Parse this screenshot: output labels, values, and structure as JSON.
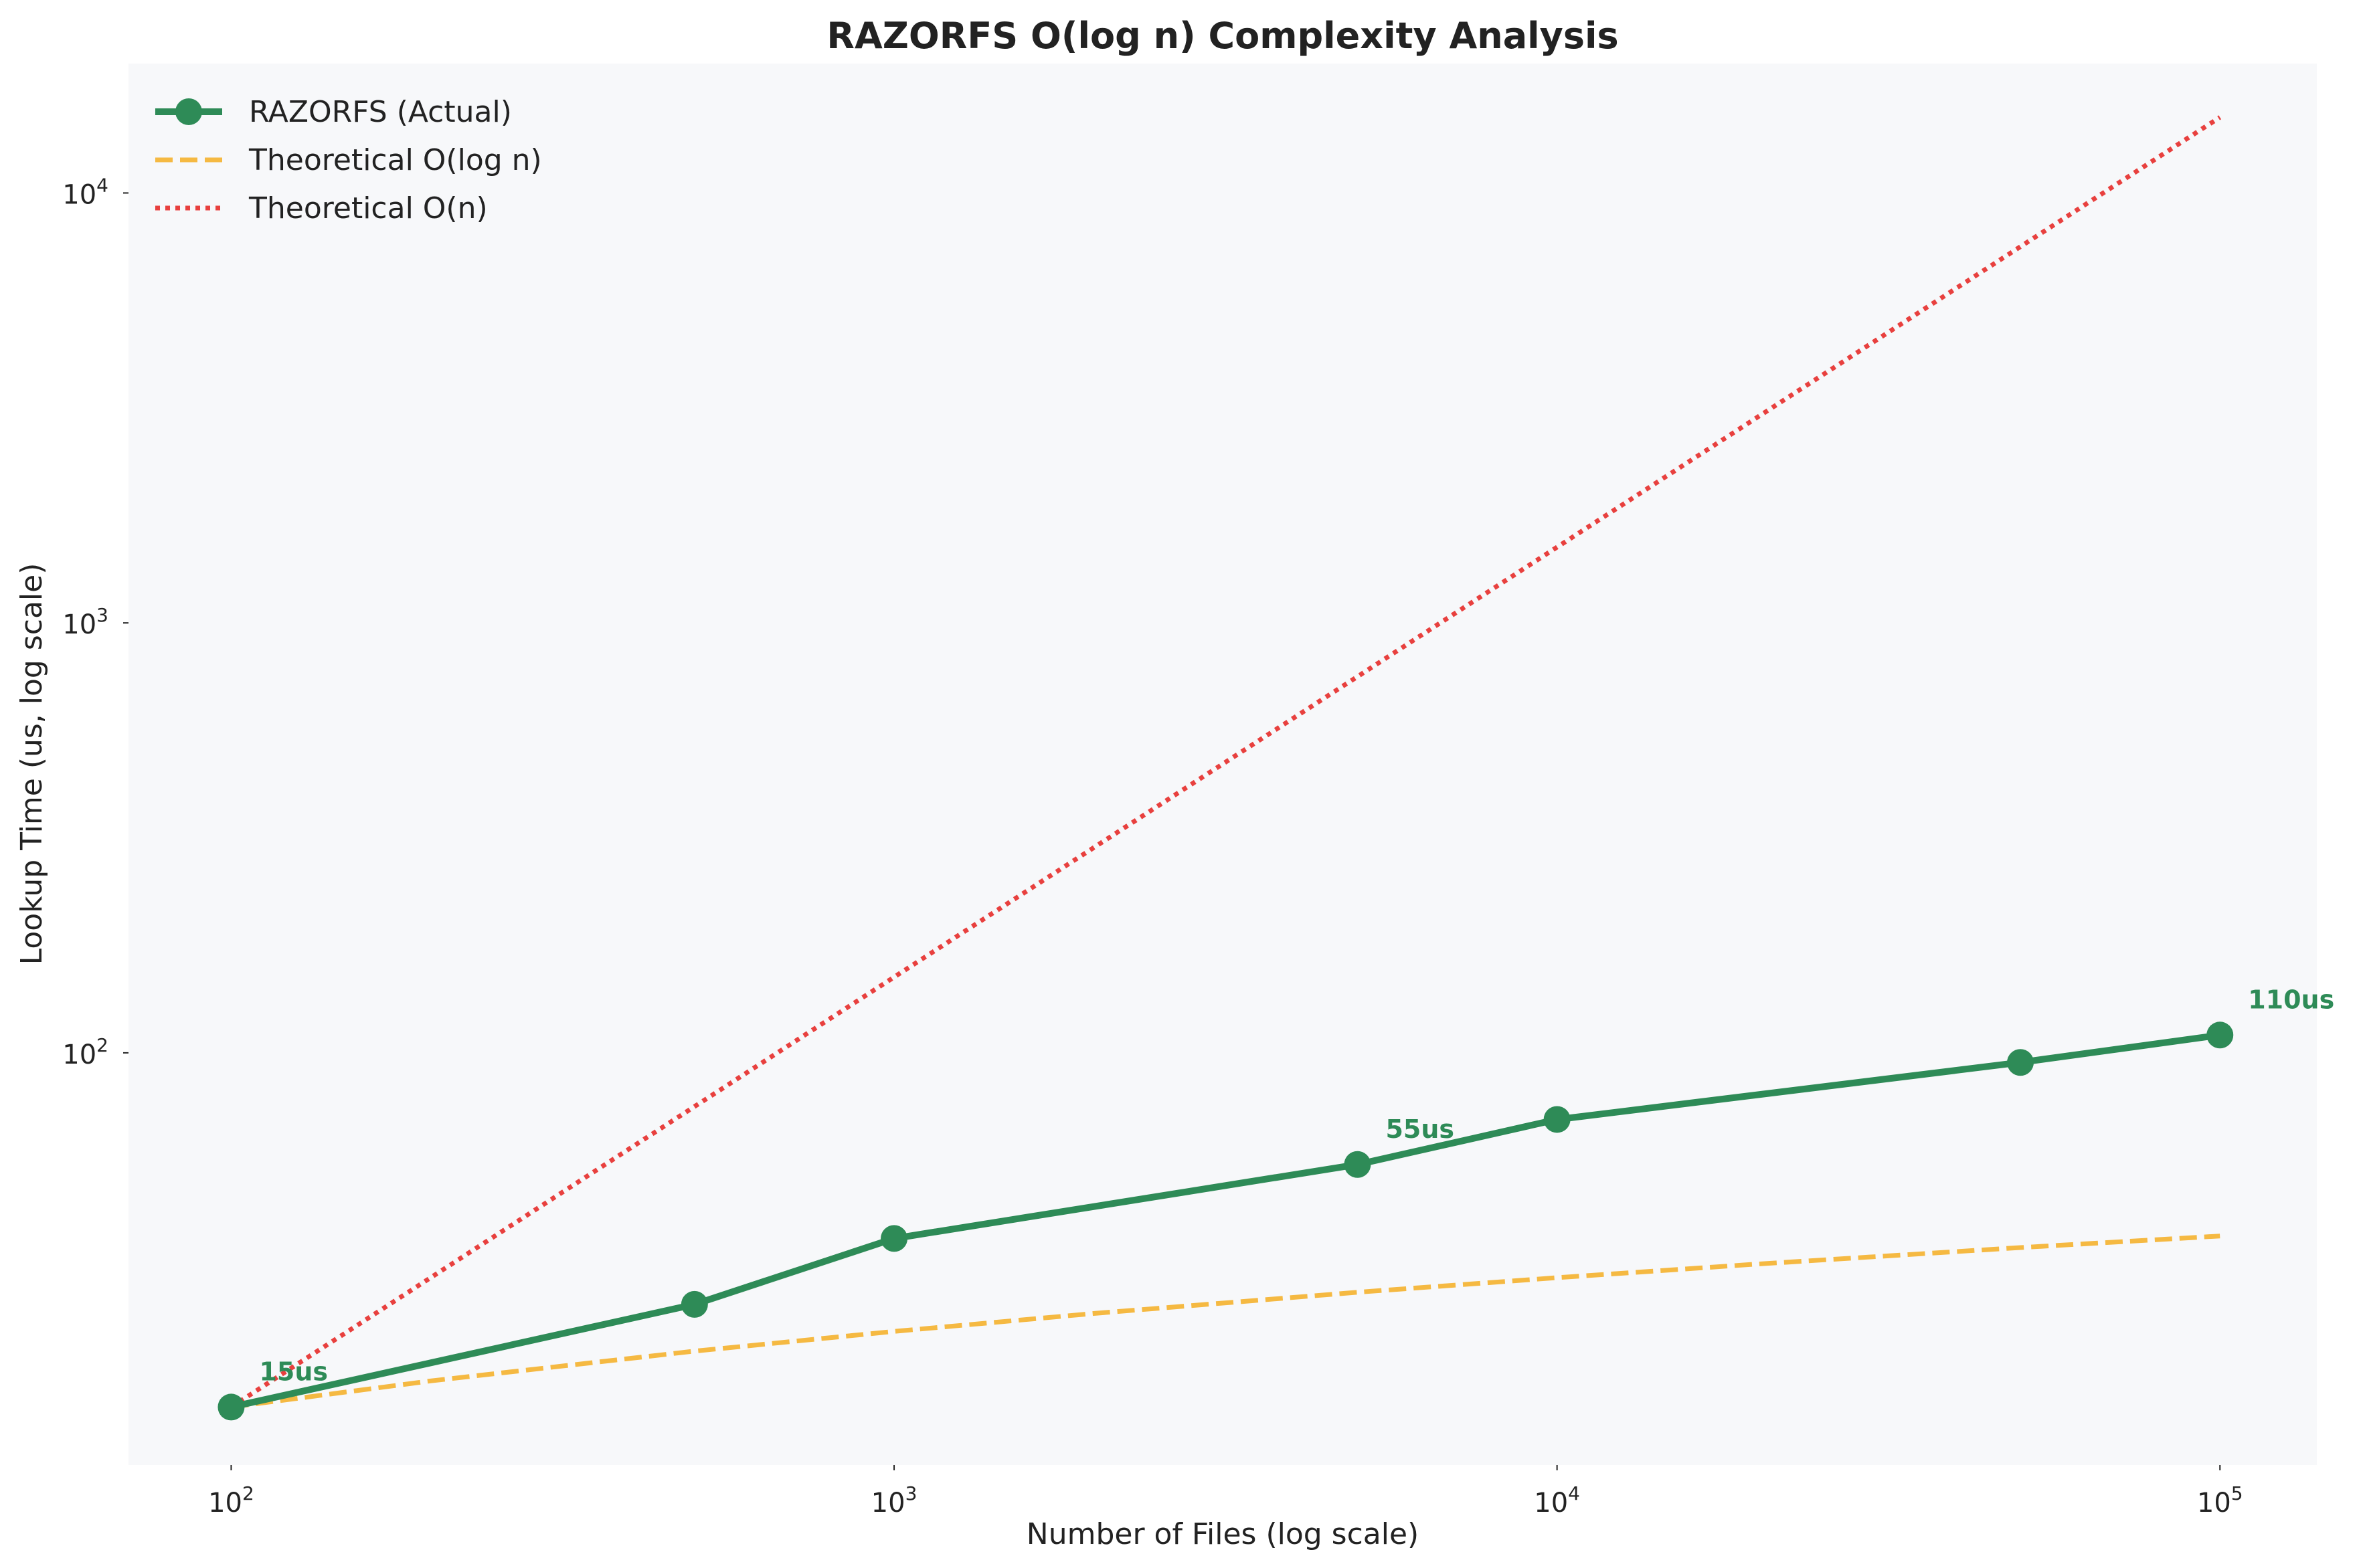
{
  "chart_data": {
    "type": "line",
    "title": "RAZORFS O(log n) Complexity Analysis",
    "xlabel": "Number of Files (log scale)",
    "ylabel": "Lookup Time (us, log scale)",
    "xscale": "log",
    "yscale": "log",
    "xlim": [
      70,
      140000
    ],
    "ylim": [
      11,
      20000
    ],
    "xticks": [
      {
        "value": 100,
        "base": "10",
        "exp": "2"
      },
      {
        "value": 1000,
        "base": "10",
        "exp": "3"
      },
      {
        "value": 10000,
        "base": "10",
        "exp": "4"
      },
      {
        "value": 100000,
        "base": "10",
        "exp": "5"
      }
    ],
    "yticks": [
      {
        "value": 100,
        "base": "10",
        "exp": "2"
      },
      {
        "value": 1000,
        "base": "10",
        "exp": "3"
      },
      {
        "value": 10000,
        "base": "10",
        "exp": "4"
      }
    ],
    "grid": false,
    "legend_position": "top-left",
    "series": [
      {
        "name": "RAZORFS (Actual)",
        "style": "solid-markers",
        "color": "#2e8b57",
        "x": [
          100,
          500,
          1000,
          5000,
          10000,
          50000,
          100000
        ],
        "y": [
          15,
          26,
          37,
          55,
          70,
          95,
          110
        ]
      },
      {
        "name": "Theoretical O(log n)",
        "style": "dashed",
        "color": "#f5b942",
        "x": [
          100,
          200,
          500,
          1000,
          2000,
          5000,
          10000,
          20000,
          50000,
          100000
        ],
        "y": [
          15,
          17.26,
          20.24,
          22.5,
          24.76,
          27.74,
          30,
          32.26,
          35.24,
          37.5
        ]
      },
      {
        "name": "Theoretical O(n)",
        "style": "dotted",
        "color": "#e8403e",
        "x": [
          100,
          100000
        ],
        "y": [
          15,
          15000
        ]
      }
    ],
    "annotations": [
      {
        "text": "15us",
        "x": 100,
        "y": 15
      },
      {
        "text": "55us",
        "x": 5000,
        "y": 55
      },
      {
        "text": "110us",
        "x": 100000,
        "y": 110
      }
    ],
    "colors": {
      "plot_background": "#f7f8fa",
      "text": "#222222",
      "annotation": "#2e8b57"
    }
  }
}
